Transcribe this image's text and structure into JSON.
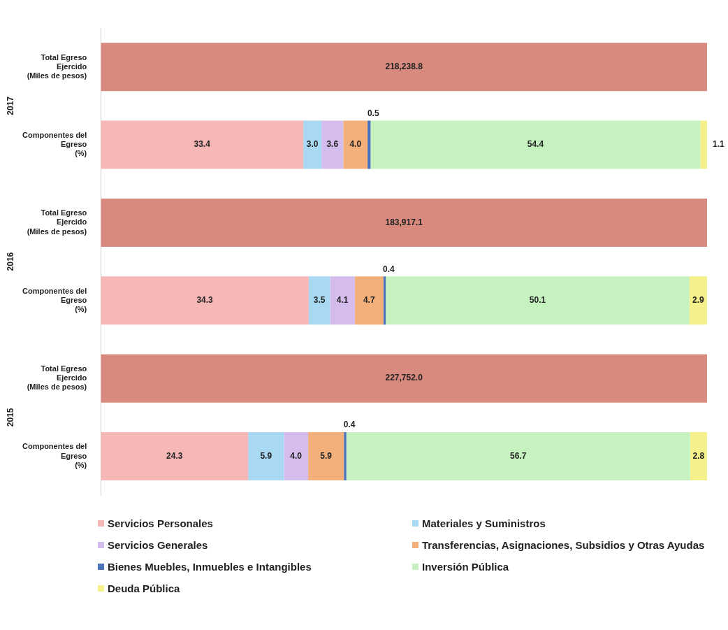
{
  "chart_data": {
    "type": "bar",
    "orientation": "horizontal",
    "stacked": true,
    "tick_labels": "y",
    "grid": false,
    "legend": "bottom",
    "categories": [
      "Total Egreso Ejercido (Miles de pesos)",
      "Componentes del Egreso (%)",
      "Total Egreso Ejercido (Miles de pesos)",
      "Componentes del Egreso (%)",
      "Total Egreso Ejercido (Miles de pesos)",
      "Componentes del Egreso (%)"
    ],
    "annotations": [
      "2017",
      "2016",
      "2015",
      "218,238.8",
      "183,917.1",
      "227,752.0"
    ],
    "series": [
      {
        "color": "#d98a7e",
        "values": [
          100,
          null,
          100,
          null,
          100,
          null
        ]
      },
      {
        "name": "Servicios Personales",
        "color": "#f5b8b6",
        "values": [
          null,
          33.4,
          null,
          34.3,
          null,
          24.3
        ],
        "value_labels": [
          null,
          "33.4",
          null,
          "34.3",
          null,
          "24.3"
        ]
      },
      {
        "name": "Materiales y Suministros",
        "color": "#a9d8f2",
        "values": [
          null,
          3.0,
          null,
          3.5,
          null,
          5.9
        ],
        "value_labels": [
          null,
          "3.0",
          null,
          "3.5",
          null,
          "5.9"
        ]
      },
      {
        "name": "Servicios Generales",
        "color": "#d4bdec",
        "values": [
          null,
          3.6,
          null,
          4.1,
          null,
          4.0
        ],
        "value_labels": [
          null,
          "3.6",
          null,
          "4.1",
          null,
          "4.0"
        ]
      },
      {
        "name": "Transferencias, Asignaciones, Subsidios y Otras Ayudas",
        "color": "#f4b07a",
        "values": [
          null,
          4.0,
          null,
          4.7,
          null,
          5.9
        ],
        "value_labels": [
          null,
          "4.0",
          null,
          "4.7",
          null,
          "5.9"
        ]
      },
      {
        "name": "Bienes Muebles, Inmuebles e Intangibles",
        "color": "#4a72b8",
        "values": [
          null,
          0.5,
          null,
          0.4,
          null,
          0.4
        ],
        "value_labels": [
          null,
          "0.5",
          null,
          "0.4",
          null,
          "0.4"
        ]
      },
      {
        "name": "Inversión Pública",
        "color": "#c6f2c0",
        "values": [
          null,
          54.4,
          null,
          50.1,
          null,
          56.7
        ],
        "value_labels": [
          null,
          "54.4",
          null,
          "50.1",
          null,
          "56.7"
        ]
      },
      {
        "name": "Deuda Pública",
        "color": "#f4f08a",
        "values": [
          null,
          1.1,
          null,
          2.9,
          null,
          2.8
        ],
        "value_labels": [
          null,
          "1.1",
          null,
          "2.9",
          null,
          "2.8"
        ]
      }
    ]
  }
}
